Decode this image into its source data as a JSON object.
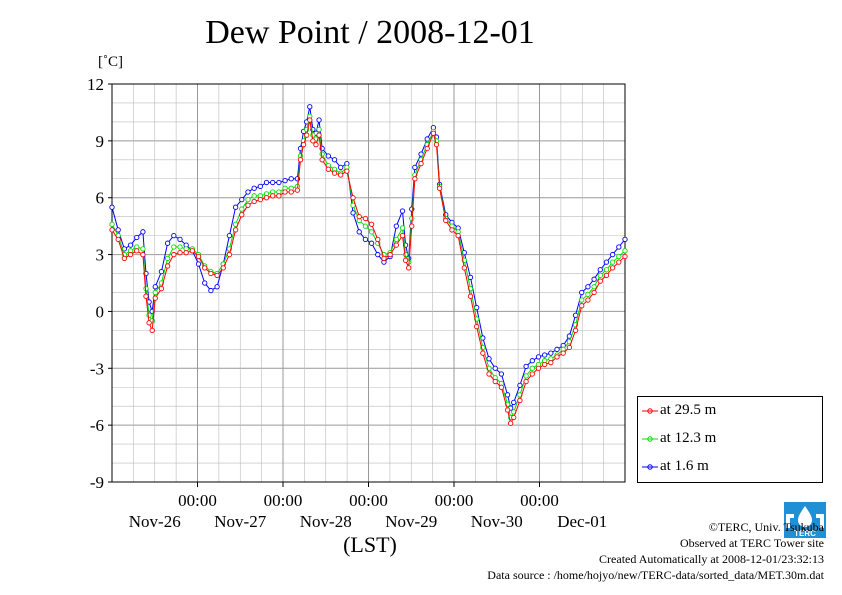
{
  "chart_data": {
    "type": "line",
    "title": "Dew Point / 2008-12-01",
    "unit_label": "[˚C]",
    "xlabel": "(LST)",
    "ylim": [
      -9,
      12
    ],
    "yticks": [
      "12",
      "9",
      "6",
      "3",
      "0",
      "-3",
      "-6",
      "-9"
    ],
    "ytick_values": [
      12,
      9,
      6,
      3,
      0,
      -3,
      -6,
      -9
    ],
    "xlim_days": [
      0,
      6
    ],
    "x_time_labels": [
      "00:00",
      "00:00",
      "00:00",
      "00:00",
      "00:00"
    ],
    "x_date_labels": [
      "Nov-26",
      "Nov-27",
      "Nov-28",
      "Nov-29",
      "Nov-30",
      "Dec-01"
    ],
    "grid": true,
    "legend_position": "lower-right outside",
    "series": [
      {
        "name": "at 29.5 m",
        "color": "#ff0000",
        "points": [
          [
            0.0,
            4.3
          ],
          [
            0.1,
            3.8
          ],
          [
            0.2,
            2.8
          ],
          [
            0.3,
            3.0
          ],
          [
            0.4,
            3.2
          ],
          [
            0.5,
            3.0
          ],
          [
            0.55,
            0.8
          ],
          [
            0.6,
            -0.6
          ],
          [
            0.65,
            -1.0
          ],
          [
            0.7,
            0.7
          ],
          [
            0.8,
            1.2
          ],
          [
            0.9,
            2.4
          ],
          [
            1.0,
            3.0
          ],
          [
            1.1,
            3.1
          ],
          [
            1.2,
            3.1
          ],
          [
            1.3,
            3.2
          ],
          [
            1.4,
            2.9
          ],
          [
            1.5,
            2.3
          ],
          [
            1.6,
            2.0
          ],
          [
            1.7,
            1.9
          ],
          [
            1.8,
            2.3
          ],
          [
            1.9,
            3.0
          ],
          [
            2.0,
            4.3
          ],
          [
            2.1,
            5.1
          ],
          [
            2.2,
            5.6
          ],
          [
            2.3,
            5.8
          ],
          [
            2.4,
            5.9
          ],
          [
            2.5,
            6.0
          ],
          [
            2.6,
            6.1
          ],
          [
            2.7,
            6.1
          ],
          [
            2.8,
            6.3
          ],
          [
            2.9,
            6.3
          ],
          [
            3.0,
            6.4
          ],
          [
            3.05,
            8.0
          ],
          [
            3.1,
            8.8
          ],
          [
            3.15,
            9.3
          ],
          [
            3.2,
            10.1
          ],
          [
            3.25,
            9.0
          ],
          [
            3.3,
            8.8
          ],
          [
            3.35,
            9.3
          ],
          [
            3.4,
            8.0
          ],
          [
            3.5,
            7.5
          ],
          [
            3.6,
            7.3
          ],
          [
            3.7,
            7.2
          ],
          [
            3.8,
            7.4
          ],
          [
            3.9,
            6.0
          ],
          [
            4.0,
            5.0
          ],
          [
            4.1,
            4.9
          ],
          [
            4.2,
            4.6
          ],
          [
            4.3,
            3.8
          ],
          [
            4.4,
            2.8
          ],
          [
            4.5,
            3.0
          ],
          [
            4.6,
            3.5
          ],
          [
            4.7,
            4.0
          ],
          [
            4.75,
            2.7
          ],
          [
            4.8,
            2.3
          ],
          [
            4.85,
            4.5
          ],
          [
            4.9,
            7.0
          ],
          [
            5.0,
            7.8
          ],
          [
            5.1,
            8.6
          ],
          [
            5.2,
            9.4
          ],
          [
            5.25,
            8.8
          ],
          [
            5.3,
            6.5
          ],
          [
            5.4,
            4.8
          ],
          [
            5.5,
            4.3
          ],
          [
            5.6,
            4.0
          ],
          [
            5.7,
            2.3
          ],
          [
            5.8,
            0.8
          ],
          [
            5.9,
            -0.8
          ],
          [
            6.0,
            -2.2
          ],
          [
            6.1,
            -3.3
          ],
          [
            6.2,
            -3.7
          ],
          [
            6.3,
            -4.0
          ],
          [
            6.4,
            -5.2
          ],
          [
            6.45,
            -5.9
          ],
          [
            6.5,
            -5.6
          ],
          [
            6.6,
            -4.7
          ],
          [
            6.7,
            -3.7
          ],
          [
            6.8,
            -3.3
          ],
          [
            6.9,
            -3.0
          ],
          [
            7.0,
            -2.8
          ],
          [
            7.1,
            -2.7
          ],
          [
            7.2,
            -2.4
          ],
          [
            7.3,
            -2.2
          ],
          [
            7.4,
            -1.9
          ],
          [
            7.5,
            -1.0
          ],
          [
            7.6,
            0.3
          ],
          [
            7.7,
            0.6
          ],
          [
            7.8,
            1.0
          ],
          [
            7.9,
            1.6
          ],
          [
            8.0,
            1.9
          ],
          [
            8.1,
            2.3
          ],
          [
            8.2,
            2.6
          ],
          [
            8.3,
            2.9
          ]
        ]
      },
      {
        "name": "at 12.3 m",
        "color": "#00dd00",
        "points": [
          [
            0.0,
            4.6
          ],
          [
            0.1,
            4.0
          ],
          [
            0.2,
            3.0
          ],
          [
            0.3,
            3.2
          ],
          [
            0.4,
            3.4
          ],
          [
            0.5,
            3.3
          ],
          [
            0.55,
            1.2
          ],
          [
            0.6,
            -0.2
          ],
          [
            0.65,
            -0.5
          ],
          [
            0.7,
            1.0
          ],
          [
            0.8,
            1.5
          ],
          [
            0.9,
            2.8
          ],
          [
            1.0,
            3.4
          ],
          [
            1.1,
            3.4
          ],
          [
            1.2,
            3.3
          ],
          [
            1.3,
            3.3
          ],
          [
            1.4,
            3.0
          ],
          [
            1.5,
            2.4
          ],
          [
            1.6,
            2.1
          ],
          [
            1.7,
            2.0
          ],
          [
            1.8,
            2.5
          ],
          [
            1.9,
            3.3
          ],
          [
            2.0,
            4.6
          ],
          [
            2.1,
            5.4
          ],
          [
            2.2,
            5.9
          ],
          [
            2.3,
            6.1
          ],
          [
            2.4,
            6.1
          ],
          [
            2.5,
            6.2
          ],
          [
            2.6,
            6.3
          ],
          [
            2.7,
            6.3
          ],
          [
            2.8,
            6.5
          ],
          [
            2.9,
            6.5
          ],
          [
            3.0,
            6.6
          ],
          [
            3.05,
            8.2
          ],
          [
            3.1,
            9.0
          ],
          [
            3.15,
            9.6
          ],
          [
            3.2,
            10.3
          ],
          [
            3.25,
            9.3
          ],
          [
            3.3,
            9.1
          ],
          [
            3.35,
            9.6
          ],
          [
            3.4,
            8.3
          ],
          [
            3.5,
            7.7
          ],
          [
            3.6,
            7.5
          ],
          [
            3.7,
            7.3
          ],
          [
            3.8,
            7.6
          ],
          [
            3.9,
            5.6
          ],
          [
            4.0,
            4.8
          ],
          [
            4.1,
            4.5
          ],
          [
            4.2,
            4.2
          ],
          [
            4.3,
            3.6
          ],
          [
            4.4,
            3.0
          ],
          [
            4.5,
            3.1
          ],
          [
            4.6,
            3.8
          ],
          [
            4.7,
            4.4
          ],
          [
            4.75,
            3.0
          ],
          [
            4.8,
            2.6
          ],
          [
            4.85,
            4.9
          ],
          [
            4.9,
            7.2
          ],
          [
            5.0,
            8.0
          ],
          [
            5.1,
            8.8
          ],
          [
            5.2,
            9.5
          ],
          [
            5.25,
            9.0
          ],
          [
            5.3,
            6.6
          ],
          [
            5.4,
            4.9
          ],
          [
            5.5,
            4.5
          ],
          [
            5.6,
            4.2
          ],
          [
            5.7,
            2.7
          ],
          [
            5.8,
            1.2
          ],
          [
            5.9,
            -0.4
          ],
          [
            6.0,
            -1.9
          ],
          [
            6.1,
            -3.0
          ],
          [
            6.2,
            -3.5
          ],
          [
            6.3,
            -3.8
          ],
          [
            6.4,
            -4.9
          ],
          [
            6.45,
            -5.6
          ],
          [
            6.5,
            -5.3
          ],
          [
            6.6,
            -4.4
          ],
          [
            6.7,
            -3.4
          ],
          [
            6.8,
            -3.0
          ],
          [
            6.9,
            -2.8
          ],
          [
            7.0,
            -2.6
          ],
          [
            7.1,
            -2.5
          ],
          [
            7.2,
            -2.3
          ],
          [
            7.3,
            -2.0
          ],
          [
            7.4,
            -1.6
          ],
          [
            7.5,
            -0.7
          ],
          [
            7.6,
            0.6
          ],
          [
            7.7,
            0.9
          ],
          [
            7.8,
            1.3
          ],
          [
            7.9,
            1.9
          ],
          [
            8.0,
            2.2
          ],
          [
            8.1,
            2.6
          ],
          [
            8.2,
            2.9
          ],
          [
            8.3,
            3.2
          ]
        ]
      },
      {
        "name": "at 1.6 m",
        "color": "#0000ff",
        "points": [
          [
            0.0,
            5.5
          ],
          [
            0.1,
            4.3
          ],
          [
            0.2,
            3.3
          ],
          [
            0.3,
            3.5
          ],
          [
            0.4,
            3.9
          ],
          [
            0.5,
            4.2
          ],
          [
            0.55,
            2.0
          ],
          [
            0.6,
            0.5
          ],
          [
            0.65,
            0.0
          ],
          [
            0.7,
            1.3
          ],
          [
            0.8,
            2.1
          ],
          [
            0.9,
            3.6
          ],
          [
            1.0,
            4.0
          ],
          [
            1.1,
            3.8
          ],
          [
            1.2,
            3.5
          ],
          [
            1.3,
            3.2
          ],
          [
            1.4,
            2.5
          ],
          [
            1.5,
            1.5
          ],
          [
            1.6,
            1.1
          ],
          [
            1.7,
            1.3
          ],
          [
            1.8,
            2.5
          ],
          [
            1.9,
            4.0
          ],
          [
            2.0,
            5.5
          ],
          [
            2.1,
            5.9
          ],
          [
            2.2,
            6.3
          ],
          [
            2.3,
            6.5
          ],
          [
            2.4,
            6.6
          ],
          [
            2.5,
            6.8
          ],
          [
            2.6,
            6.8
          ],
          [
            2.7,
            6.8
          ],
          [
            2.8,
            6.9
          ],
          [
            2.9,
            7.0
          ],
          [
            3.0,
            7.0
          ],
          [
            3.05,
            8.6
          ],
          [
            3.1,
            9.5
          ],
          [
            3.15,
            10.0
          ],
          [
            3.2,
            10.8
          ],
          [
            3.25,
            9.6
          ],
          [
            3.3,
            9.4
          ],
          [
            3.35,
            10.1
          ],
          [
            3.4,
            8.6
          ],
          [
            3.5,
            8.2
          ],
          [
            3.6,
            8.0
          ],
          [
            3.7,
            7.6
          ],
          [
            3.8,
            7.8
          ],
          [
            3.9,
            5.2
          ],
          [
            4.0,
            4.2
          ],
          [
            4.1,
            3.8
          ],
          [
            4.2,
            3.6
          ],
          [
            4.3,
            3.0
          ],
          [
            4.4,
            2.6
          ],
          [
            4.5,
            2.9
          ],
          [
            4.6,
            4.5
          ],
          [
            4.7,
            5.3
          ],
          [
            4.75,
            3.5
          ],
          [
            4.8,
            2.8
          ],
          [
            4.85,
            5.4
          ],
          [
            4.9,
            7.6
          ],
          [
            5.0,
            8.3
          ],
          [
            5.1,
            9.1
          ],
          [
            5.2,
            9.7
          ],
          [
            5.25,
            9.2
          ],
          [
            5.3,
            6.7
          ],
          [
            5.4,
            5.1
          ],
          [
            5.5,
            4.7
          ],
          [
            5.6,
            4.4
          ],
          [
            5.7,
            3.1
          ],
          [
            5.8,
            1.8
          ],
          [
            5.9,
            0.2
          ],
          [
            6.0,
            -1.4
          ],
          [
            6.1,
            -2.5
          ],
          [
            6.2,
            -3.0
          ],
          [
            6.3,
            -3.3
          ],
          [
            6.4,
            -4.4
          ],
          [
            6.45,
            -5.1
          ],
          [
            6.5,
            -4.8
          ],
          [
            6.6,
            -3.9
          ],
          [
            6.7,
            -2.9
          ],
          [
            6.8,
            -2.6
          ],
          [
            6.9,
            -2.4
          ],
          [
            7.0,
            -2.3
          ],
          [
            7.1,
            -2.2
          ],
          [
            7.2,
            -2.0
          ],
          [
            7.3,
            -1.8
          ],
          [
            7.4,
            -1.3
          ],
          [
            7.5,
            -0.2
          ],
          [
            7.6,
            1.0
          ],
          [
            7.7,
            1.3
          ],
          [
            7.8,
            1.7
          ],
          [
            7.9,
            2.2
          ],
          [
            8.0,
            2.6
          ],
          [
            8.1,
            3.0
          ],
          [
            8.2,
            3.4
          ],
          [
            8.3,
            3.8
          ]
        ]
      }
    ]
  },
  "credits": {
    "copyright": "©TERC, Univ. Tsukuba",
    "observed": "Observed at TERC Tower site",
    "created": "Created Automatically at 2008-12-01/23:32:13",
    "source": "Data source : /home/hojyo/new/TERC-data/sorted_data/MET.30m.dat"
  },
  "logo": {
    "name": "terc-logo",
    "text": "TERC",
    "color": "#1f8fd6"
  }
}
